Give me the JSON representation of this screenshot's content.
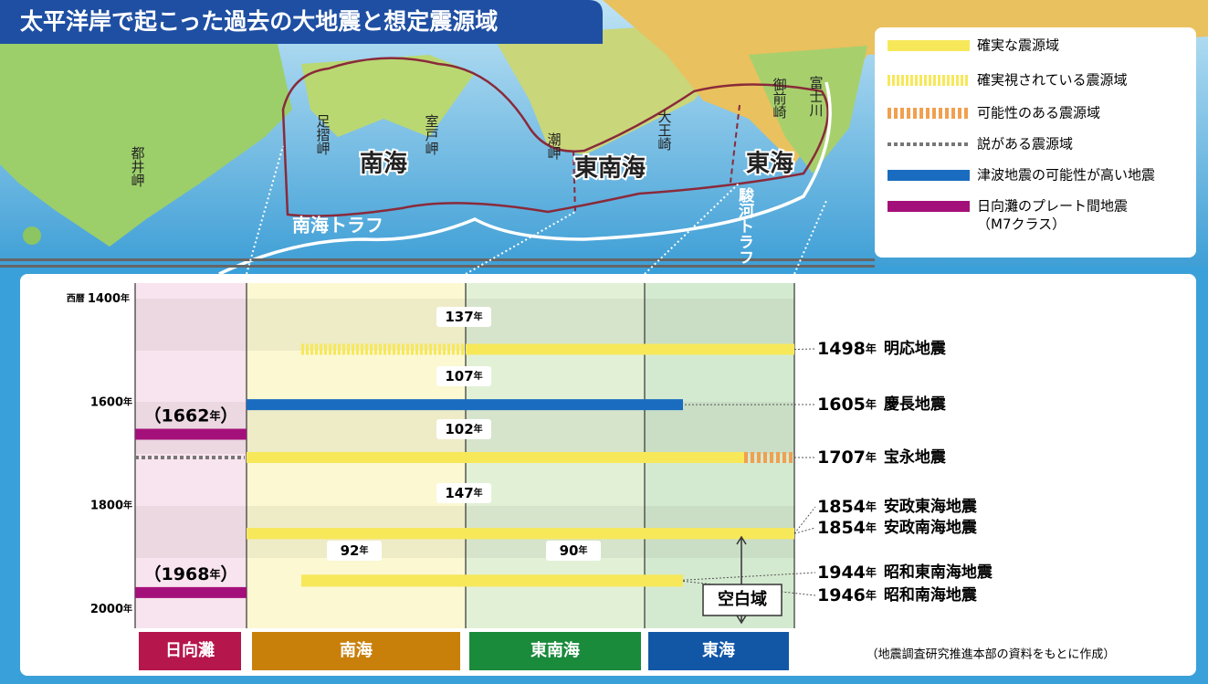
{
  "title": "太平洋岸で起こった過去の大地震と想定震源域",
  "legend": [
    {
      "label": [
        "確実な震源域"
      ]
    },
    {
      "label": [
        "確実視されている震源域"
      ]
    },
    {
      "label": [
        "可能性のある震源域"
      ]
    },
    {
      "label": [
        "説がある震源域"
      ]
    },
    {
      "label": [
        "津波地震の可能性が高い地震"
      ]
    },
    {
      "label": [
        "日向灘のプレート間地震",
        "（M7クラス）"
      ]
    }
  ],
  "map_labels": {
    "capes": [
      "都井岬",
      "足摺岬",
      "室戸岬",
      "潮岬",
      "大王崎",
      "御前崎",
      "富士川"
    ],
    "zones": [
      "南海",
      "東南海",
      "東海"
    ],
    "troughs": [
      "南海トラフ",
      "駿河トラフ"
    ]
  },
  "axis": {
    "era": "西暦",
    "ticks": [
      1400,
      1600,
      1800,
      2000
    ]
  },
  "year_unit": "年",
  "intervals": [
    137,
    107,
    102,
    147,
    92,
    90
  ],
  "events": [
    {
      "year": 1498,
      "name": "明応地震"
    },
    {
      "year": 1605,
      "name": "慶長地震"
    },
    {
      "year": 1707,
      "name": "宝永地震"
    },
    {
      "year": 1854,
      "name": "安政東海地震"
    },
    {
      "year": 1854,
      "name": "安政南海地震"
    },
    {
      "year": 1944,
      "name": "昭和東南海地震"
    },
    {
      "year": 1946,
      "name": "昭和南海地震"
    }
  ],
  "hyuga_events": [
    {
      "year": 1662
    },
    {
      "year": 1968
    }
  ],
  "paren": [
    "（",
    "）"
  ],
  "blank_zone": "空白域",
  "regions": [
    "日向灘",
    "南海",
    "東南海",
    "東海"
  ],
  "source": "（地震調査研究推進本部の資料をもとに作成）"
}
